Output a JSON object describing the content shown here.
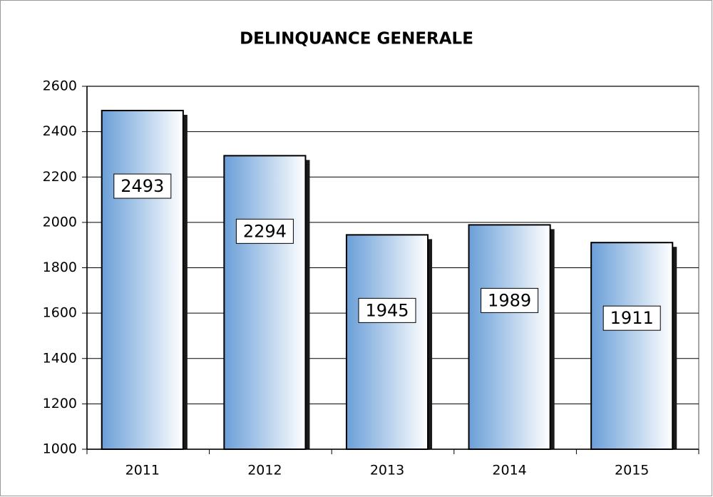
{
  "chart_data": {
    "type": "bar",
    "title": "DELINQUANCE GENERALE",
    "categories": [
      "2011",
      "2012",
      "2013",
      "2014",
      "2015"
    ],
    "values": [
      2493,
      2294,
      1945,
      1989,
      1911
    ],
    "color": "#6a9fd8",
    "ylim": [
      1000,
      2600
    ],
    "yticks": [
      1000,
      1200,
      1400,
      1600,
      1800,
      2000,
      2200,
      2400,
      2600
    ],
    "grid": true
  }
}
